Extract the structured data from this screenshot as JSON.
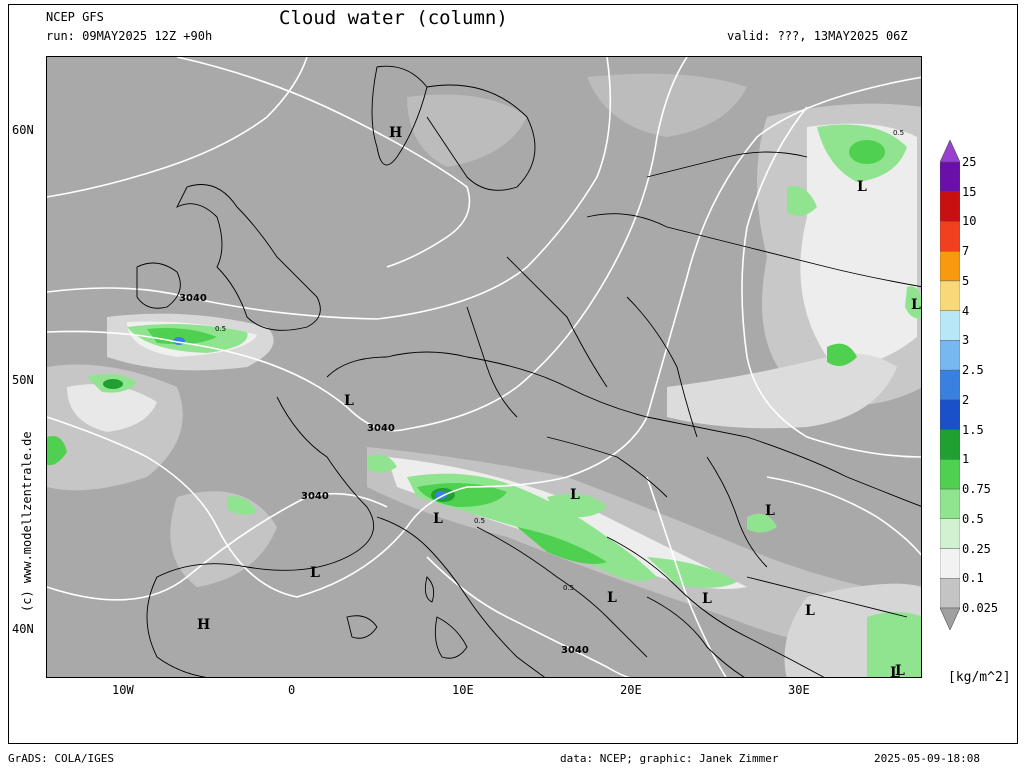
{
  "header": {
    "model": "NCEP GFS",
    "run": "run: 09MAY2025 12Z +90h",
    "title": "Cloud water (column)",
    "valid": "valid: ???, 13MAY2025 06Z"
  },
  "footer": {
    "left": "GrADS: COLA/IGES",
    "mid": "data: NCEP; graphic: Janek Zimmer",
    "right": "2025-05-09-18:08"
  },
  "copyright": "(c) www.modellzentrale.de",
  "axes": {
    "lat_labels": [
      "60N",
      "50N",
      "40N"
    ],
    "lon_labels": [
      "10W",
      "0",
      "10E",
      "20E",
      "30E"
    ]
  },
  "legend": {
    "unit": "[kg/m^2]",
    "levels": [
      "25",
      "15",
      "10",
      "7",
      "5",
      "4",
      "3",
      "2.5",
      "2",
      "1.5",
      "1",
      "0.75",
      "0.5",
      "0.25",
      "0.1",
      "0.025"
    ],
    "colors": [
      "#9a40d0",
      "#6a10a8",
      "#c81010",
      "#f04020",
      "#f89a10",
      "#f8d878",
      "#b8e8f8",
      "#78b8f0",
      "#3a80e0",
      "#1a50c8",
      "#20a030",
      "#50d050",
      "#90e490",
      "#d0f2d0",
      "#f2f2f2",
      "#c4c4c4",
      "#a0a0a0"
    ]
  },
  "map_labels": {
    "pressure_centers": [
      "H",
      "H",
      "L",
      "L",
      "L",
      "L",
      "L",
      "L",
      "L",
      "L",
      "L",
      "L",
      "L",
      "L"
    ],
    "contours": [
      "3040",
      "3040",
      "3040",
      "3040"
    ],
    "values": [
      "0.5",
      "0.5",
      "0.5",
      "0.5"
    ]
  },
  "colors": {
    "background": "#a9a9a9",
    "frame": "#000000",
    "isoline": "#ffffff"
  }
}
